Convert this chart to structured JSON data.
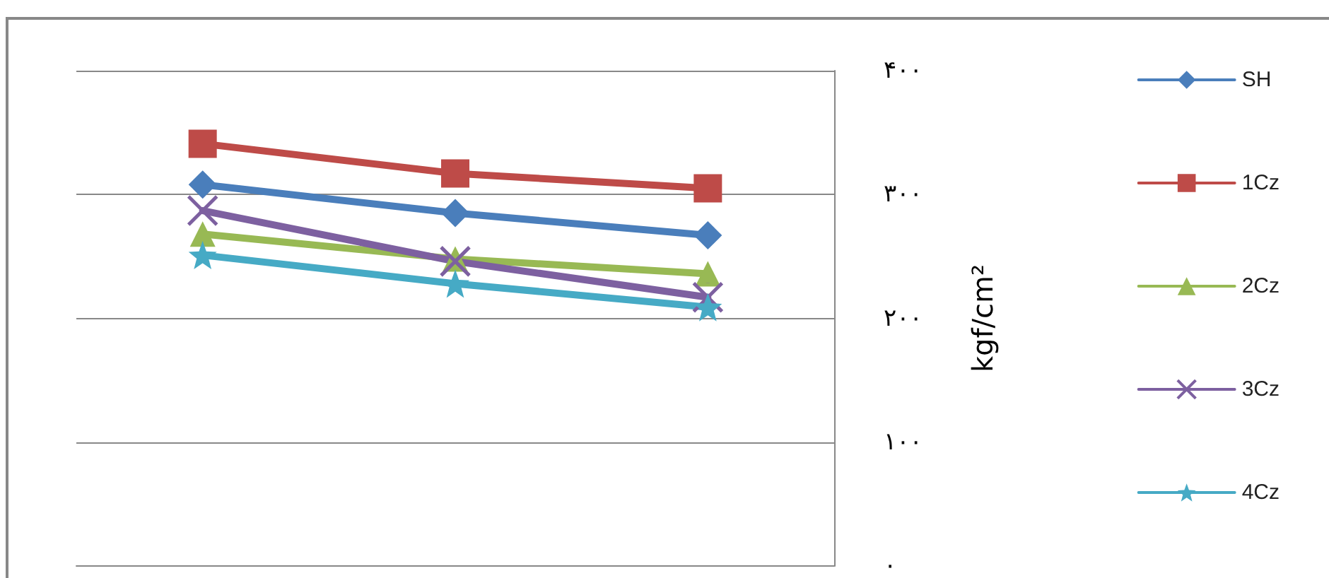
{
  "chart_data": {
    "type": "line",
    "categories": [
      null,
      null,
      null
    ],
    "ylabel": "kgf/cm²",
    "ylim": [
      0,
      400
    ],
    "yticks": [
      {
        "value": 0,
        "label": "۰"
      },
      {
        "value": 100,
        "label": "۱۰۰"
      },
      {
        "value": 200,
        "label": "۲۰۰"
      },
      {
        "value": 300,
        "label": "۳۰۰"
      },
      {
        "value": 400,
        "label": "۴۰۰"
      }
    ],
    "grid": "y",
    "legend": "right",
    "series": [
      {
        "name": "SH",
        "color": "#4a7ebb",
        "marker": "diamond",
        "values": [
          308,
          285,
          267
        ]
      },
      {
        "name": "1Cz",
        "color": "#be4b48",
        "marker": "square",
        "values": [
          341,
          317,
          305
        ]
      },
      {
        "name": "2Cz",
        "color": "#98b954",
        "marker": "triangle",
        "values": [
          268,
          248,
          236
        ]
      },
      {
        "name": "3Cz",
        "color": "#7d60a0",
        "marker": "cross",
        "values": [
          287,
          246,
          217
        ]
      },
      {
        "name": "4Cz",
        "color": "#46aac5",
        "marker": "star",
        "values": [
          251,
          228,
          209
        ]
      }
    ]
  }
}
